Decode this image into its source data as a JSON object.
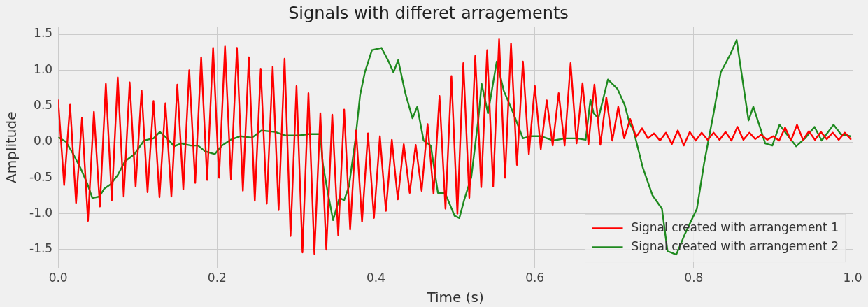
{
  "chart_data": {
    "type": "line",
    "title": "Signals with differet arragements",
    "xlabel": "Time (s)",
    "ylabel": "Amplitude",
    "xlim": [
      0,
      1
    ],
    "xticks": [
      {
        "value": 0,
        "label": "0.0"
      },
      0.2,
      0.4,
      0.6,
      0.8,
      {
        "value": 1,
        "label": "1.0"
      }
    ],
    "ylim": [
      -1.75,
      1.6
    ],
    "yticks": [
      -1.5,
      {
        "value": -1,
        "label": "-1.0"
      },
      -0.5,
      {
        "value": 0,
        "label": "0.0"
      },
      0.5,
      {
        "value": 1,
        "label": "1.0"
      },
      1.5
    ],
    "grid": true,
    "legend": "bottom right",
    "marker": "none",
    "line_style": "solid",
    "series": [
      {
        "name": "Signal created with arrangement 1",
        "color": "#ff0000",
        "x": [
          0,
          0.0075,
          0.015,
          0.0225,
          0.03,
          0.0375,
          0.045,
          0.0525,
          0.06,
          0.0675,
          0.075,
          0.0825,
          0.09,
          0.0975,
          0.105,
          0.1125,
          0.12,
          0.1275,
          0.135,
          0.1425,
          0.15,
          0.1575,
          0.165,
          0.1725,
          0.18,
          0.1875,
          0.195,
          0.2025,
          0.21,
          0.2175,
          0.225,
          0.2325,
          0.24,
          0.2475,
          0.255,
          0.2625,
          0.27,
          0.2775,
          0.285,
          0.2925,
          0.3,
          0.3075,
          0.315,
          0.3225,
          0.33,
          0.3375,
          0.345,
          0.3525,
          0.36,
          0.3675,
          0.375,
          0.3825,
          0.39,
          0.3975,
          0.405,
          0.4125,
          0.42,
          0.4275,
          0.435,
          0.4425,
          0.45,
          0.4575,
          0.465,
          0.4725,
          0.48,
          0.4875,
          0.495,
          0.5025,
          0.51,
          0.5175,
          0.525,
          0.5325,
          0.54,
          0.5475,
          0.555,
          0.5625,
          0.57,
          0.5775,
          0.585,
          0.5925,
          0.6,
          0.6075,
          0.615,
          0.6225,
          0.63,
          0.6375,
          0.645,
          0.6525,
          0.66,
          0.6675,
          0.675,
          0.6825,
          0.69,
          0.6975,
          0.705,
          0.7125,
          0.72,
          0.7275,
          0.735,
          0.7425,
          0.75,
          0.7575,
          0.765,
          0.7725,
          0.78,
          0.7875,
          0.795,
          0.8025,
          0.81,
          0.8175,
          0.825,
          0.8325,
          0.84,
          0.8475,
          0.855,
          0.8625,
          0.87,
          0.8775,
          0.885,
          0.8925,
          0.9,
          0.9075,
          0.915,
          0.9225,
          0.93,
          0.9375,
          0.945,
          0.9525,
          0.96,
          0.9675,
          0.975,
          0.9825,
          0.99,
          0.9975
        ],
        "values": [
          0.58,
          -0.6,
          0.52,
          -0.85,
          0.34,
          -1.1,
          0.42,
          -0.9,
          0.81,
          -0.81,
          0.9,
          -0.76,
          0.83,
          -0.62,
          0.72,
          -0.7,
          0.57,
          -0.77,
          0.54,
          -0.76,
          0.8,
          -0.66,
          1.0,
          -0.57,
          1.18,
          -0.53,
          1.31,
          -0.5,
          1.33,
          -0.52,
          1.31,
          -0.68,
          1.18,
          -0.82,
          1.02,
          -0.86,
          1.05,
          -0.95,
          1.16,
          -1.31,
          0.78,
          -1.54,
          0.68,
          -1.56,
          0.4,
          -1.5,
          0.38,
          -1.3,
          0.45,
          -1.22,
          0.16,
          -1.11,
          0.12,
          -1.06,
          0.08,
          -0.96,
          0.03,
          -0.8,
          -0.03,
          -0.71,
          -0.04,
          -0.68,
          0.25,
          -0.72,
          0.64,
          -0.93,
          0.92,
          -1.0,
          1.1,
          -0.78,
          1.2,
          -0.63,
          1.28,
          -0.62,
          1.43,
          -0.5,
          1.37,
          -0.32,
          1.12,
          -0.17,
          0.78,
          -0.1,
          0.58,
          -0.05,
          0.68,
          -0.05,
          1.1,
          -0.02,
          0.82,
          -0.03,
          0.8,
          -0.04,
          0.62,
          0.02,
          0.49,
          0.05,
          0.32,
          0.07,
          0.19,
          0.05,
          0.12,
          0.02,
          0.13,
          -0.03,
          0.16,
          -0.05,
          0.14,
          0.02,
          0.13,
          0.03,
          0.13,
          0.03,
          0.14,
          0.02,
          0.21,
          0.03,
          0.13,
          0.04,
          0.1,
          0.03,
          0.08,
          0.02,
          0.2,
          0.02,
          0.24,
          0.03,
          0.15,
          0.03,
          0.14,
          0.04,
          0.13,
          0.03,
          0.13,
          0.04
        ]
      },
      {
        "name": "Signal created with arrangement 2",
        "color": "#1f8a1f",
        "x": [
          0.001,
          0.01,
          0.019,
          0.028,
          0.037,
          0.043,
          0.052,
          0.058,
          0.066,
          0.075,
          0.084,
          0.096,
          0.108,
          0.12,
          0.128,
          0.137,
          0.146,
          0.155,
          0.167,
          0.176,
          0.185,
          0.197,
          0.206,
          0.217,
          0.229,
          0.244,
          0.256,
          0.273,
          0.286,
          0.303,
          0.315,
          0.33,
          0.333,
          0.339,
          0.346,
          0.354,
          0.36,
          0.366,
          0.374,
          0.38,
          0.386,
          0.395,
          0.407,
          0.416,
          0.422,
          0.428,
          0.437,
          0.446,
          0.452,
          0.46,
          0.469,
          0.478,
          0.487,
          0.499,
          0.505,
          0.511,
          0.52,
          0.529,
          0.533,
          0.541,
          0.552,
          0.561,
          0.573,
          0.585,
          0.594,
          0.608,
          0.623,
          0.638,
          0.653,
          0.664,
          0.67,
          0.674,
          0.68,
          0.692,
          0.704,
          0.713,
          0.719,
          0.724,
          0.736,
          0.748,
          0.76,
          0.767,
          0.778,
          0.789,
          0.804,
          0.813,
          0.825,
          0.834,
          0.846,
          0.854,
          0.869,
          0.875,
          0.89,
          0.899,
          0.908,
          0.917,
          0.929,
          0.94,
          0.952,
          0.961,
          0.976,
          0.985,
          0.997
        ],
        "values": [
          0.06,
          0.0,
          -0.17,
          -0.36,
          -0.59,
          -0.78,
          -0.76,
          -0.65,
          -0.59,
          -0.46,
          -0.27,
          -0.17,
          0.02,
          0.05,
          0.14,
          0.05,
          -0.06,
          -0.02,
          -0.05,
          -0.05,
          -0.13,
          -0.17,
          -0.05,
          0.03,
          0.08,
          0.06,
          0.16,
          0.14,
          0.09,
          0.09,
          0.11,
          0.11,
          -0.3,
          -0.68,
          -1.09,
          -0.78,
          -0.81,
          -0.62,
          0.02,
          0.65,
          0.97,
          1.28,
          1.31,
          1.12,
          0.97,
          1.14,
          0.68,
          0.33,
          0.49,
          0.02,
          -0.05,
          -0.71,
          -0.71,
          -1.03,
          -1.06,
          -0.81,
          -0.49,
          0.33,
          0.81,
          0.4,
          1.12,
          0.71,
          0.4,
          0.05,
          0.08,
          0.08,
          0.02,
          0.05,
          0.05,
          0.03,
          0.59,
          0.4,
          0.33,
          0.87,
          0.74,
          0.52,
          0.27,
          0.17,
          -0.36,
          -0.74,
          -0.93,
          -1.52,
          -1.57,
          -1.28,
          -0.93,
          -0.3,
          0.4,
          0.97,
          1.22,
          1.42,
          0.3,
          0.49,
          -0.02,
          -0.05,
          0.24,
          0.11,
          -0.06,
          0.05,
          0.21,
          0.02,
          0.24,
          0.11,
          0.08
        ]
      }
    ]
  }
}
